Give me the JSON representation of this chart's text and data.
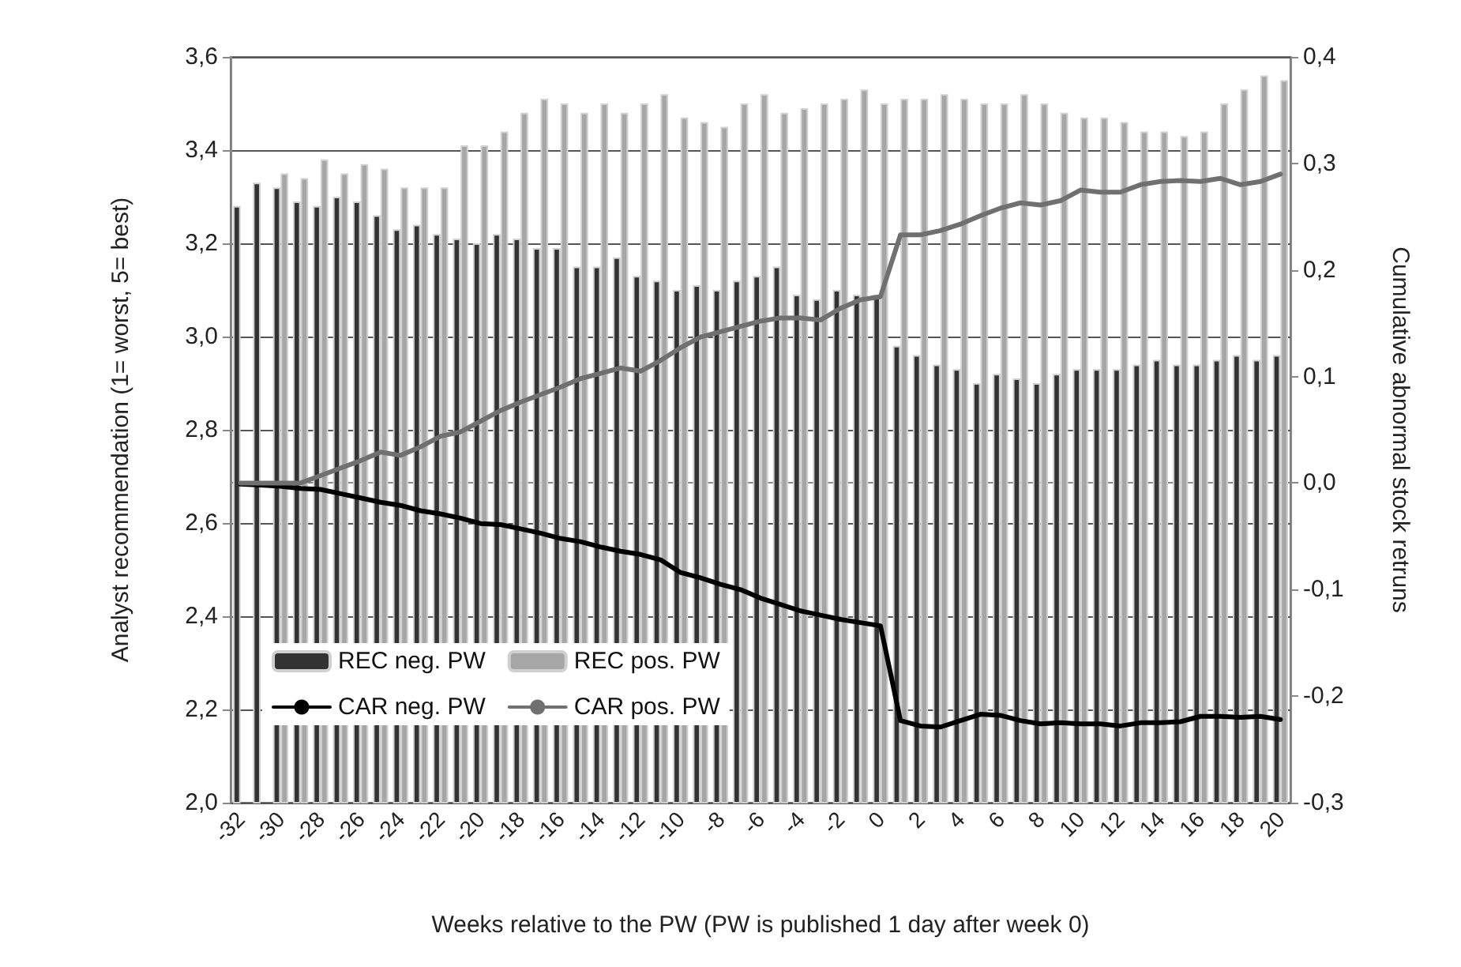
{
  "chart_data": {
    "type": "bar",
    "xlabel": "Weeks relative to the PW (PW is published 1 day after week 0)",
    "ylabel": "Analyst recommendation (1= worst, 5= best)",
    "y2label": "Cumulative abnormal stock retruns",
    "categories": [
      "-32",
      null,
      "-30",
      null,
      "-28",
      null,
      "-26",
      null,
      "-24",
      null,
      "-22",
      null,
      "-20",
      null,
      "-18",
      null,
      "-16",
      null,
      "-14",
      null,
      "-12",
      null,
      "-10",
      null,
      "-8",
      null,
      "-6",
      null,
      "-4",
      null,
      "-2",
      null,
      "0",
      null,
      "2",
      null,
      "4",
      null,
      "6",
      null,
      "8",
      null,
      "10",
      null,
      "12",
      null,
      "14",
      null,
      "16",
      null,
      "18",
      null,
      "20"
    ],
    "series": [
      {
        "name": "REC neg. PW",
        "color": "#333333",
        "values": [
          3.28,
          3.33,
          3.32,
          3.29,
          3.28,
          3.3,
          3.29,
          3.26,
          3.23,
          3.24,
          3.22,
          3.21,
          3.2,
          3.22,
          3.21,
          3.19,
          3.19,
          3.15,
          3.15,
          3.17,
          3.13,
          3.12,
          3.1,
          3.11,
          3.1,
          3.12,
          3.13,
          3.15,
          3.09,
          3.08,
          3.1,
          3.09,
          3.09,
          2.98,
          2.96,
          2.94,
          2.93,
          2.9,
          2.92,
          2.91,
          2.9,
          2.92,
          2.93,
          2.93,
          2.93,
          2.94,
          2.95,
          2.94,
          2.94,
          2.95,
          2.96,
          2.95,
          2.96
        ]
      },
      {
        "name": "REC pos. PW",
        "color": "#a6a6a6",
        "values": [
          null,
          null,
          3.35,
          3.34,
          3.38,
          3.35,
          3.37,
          3.36,
          3.32,
          3.32,
          3.32,
          3.41,
          3.41,
          3.44,
          3.48,
          3.51,
          3.5,
          3.48,
          3.5,
          3.48,
          3.5,
          3.52,
          3.47,
          3.46,
          3.45,
          3.5,
          3.52,
          3.48,
          3.49,
          3.5,
          3.51,
          3.53,
          3.5,
          3.51,
          3.51,
          3.52,
          3.51,
          3.5,
          3.5,
          3.52,
          3.5,
          3.48,
          3.47,
          3.47,
          3.46,
          3.44,
          3.44,
          3.43,
          3.44,
          3.5,
          3.53,
          3.56,
          3.55
        ]
      },
      {
        "name": "CAR neg. PW",
        "type": "line",
        "axis": "y2",
        "color": "#000000",
        "values": [
          -0.001,
          -0.002,
          -0.003,
          -0.005,
          -0.006,
          -0.01,
          -0.014,
          -0.018,
          -0.021,
          -0.026,
          -0.029,
          -0.033,
          -0.038,
          -0.039,
          -0.043,
          -0.047,
          -0.052,
          -0.055,
          -0.06,
          -0.064,
          -0.067,
          -0.072,
          -0.084,
          -0.089,
          -0.095,
          -0.1,
          -0.108,
          -0.114,
          -0.12,
          -0.124,
          -0.128,
          -0.131,
          -0.134,
          -0.223,
          -0.228,
          -0.229,
          -0.223,
          -0.217,
          -0.218,
          -0.223,
          -0.226,
          -0.225,
          -0.226,
          -0.226,
          -0.228,
          -0.225,
          -0.225,
          -0.224,
          -0.219,
          -0.219,
          -0.22,
          -0.219,
          -0.222
        ]
      },
      {
        "name": "CAR pos. PW",
        "type": "line",
        "axis": "y2",
        "color": "#707070",
        "values": [
          0.0,
          0.0,
          0.0,
          0.0,
          0.007,
          0.014,
          0.021,
          0.029,
          0.026,
          0.034,
          0.044,
          0.048,
          0.058,
          0.068,
          0.076,
          0.083,
          0.09,
          0.098,
          0.103,
          0.108,
          0.105,
          0.115,
          0.127,
          0.137,
          0.142,
          0.147,
          0.152,
          0.155,
          0.155,
          0.153,
          0.164,
          0.172,
          0.175,
          0.233,
          0.233,
          0.237,
          0.243,
          0.251,
          0.258,
          0.263,
          0.261,
          0.265,
          0.275,
          0.273,
          0.273,
          0.28,
          0.283,
          0.284,
          0.283,
          0.286,
          0.28,
          0.283,
          0.29
        ]
      }
    ],
    "ylim": [
      2.0,
      3.6
    ],
    "yticks": [
      {
        "value": 2.0,
        "label": "2,0"
      },
      {
        "value": 2.2,
        "label": "2,2"
      },
      {
        "value": 2.4,
        "label": "2,4"
      },
      {
        "value": 2.6,
        "label": "2,6"
      },
      {
        "value": 2.8,
        "label": "2,8"
      },
      {
        "value": 3.0,
        "label": "3,0"
      },
      {
        "value": 3.2,
        "label": "3,2"
      },
      {
        "value": 3.4,
        "label": "3,4"
      },
      {
        "value": 3.6,
        "label": "3,6"
      }
    ],
    "y2lim": [
      -0.3,
      0.4
    ],
    "y2ticks": [
      {
        "value": -0.3,
        "label": "-0,3"
      },
      {
        "value": -0.2,
        "label": "-0,2"
      },
      {
        "value": -0.1,
        "label": "-0,1"
      },
      {
        "value": 0.0,
        "label": "0,0"
      },
      {
        "value": 0.1,
        "label": "0,1"
      },
      {
        "value": 0.2,
        "label": "0,2"
      },
      {
        "value": 0.3,
        "label": "0,3"
      },
      {
        "value": 0.4,
        "label": "0,4"
      }
    ],
    "grid": "y",
    "legend": "bottom left",
    "marker": "none",
    "line_style": "solid"
  }
}
